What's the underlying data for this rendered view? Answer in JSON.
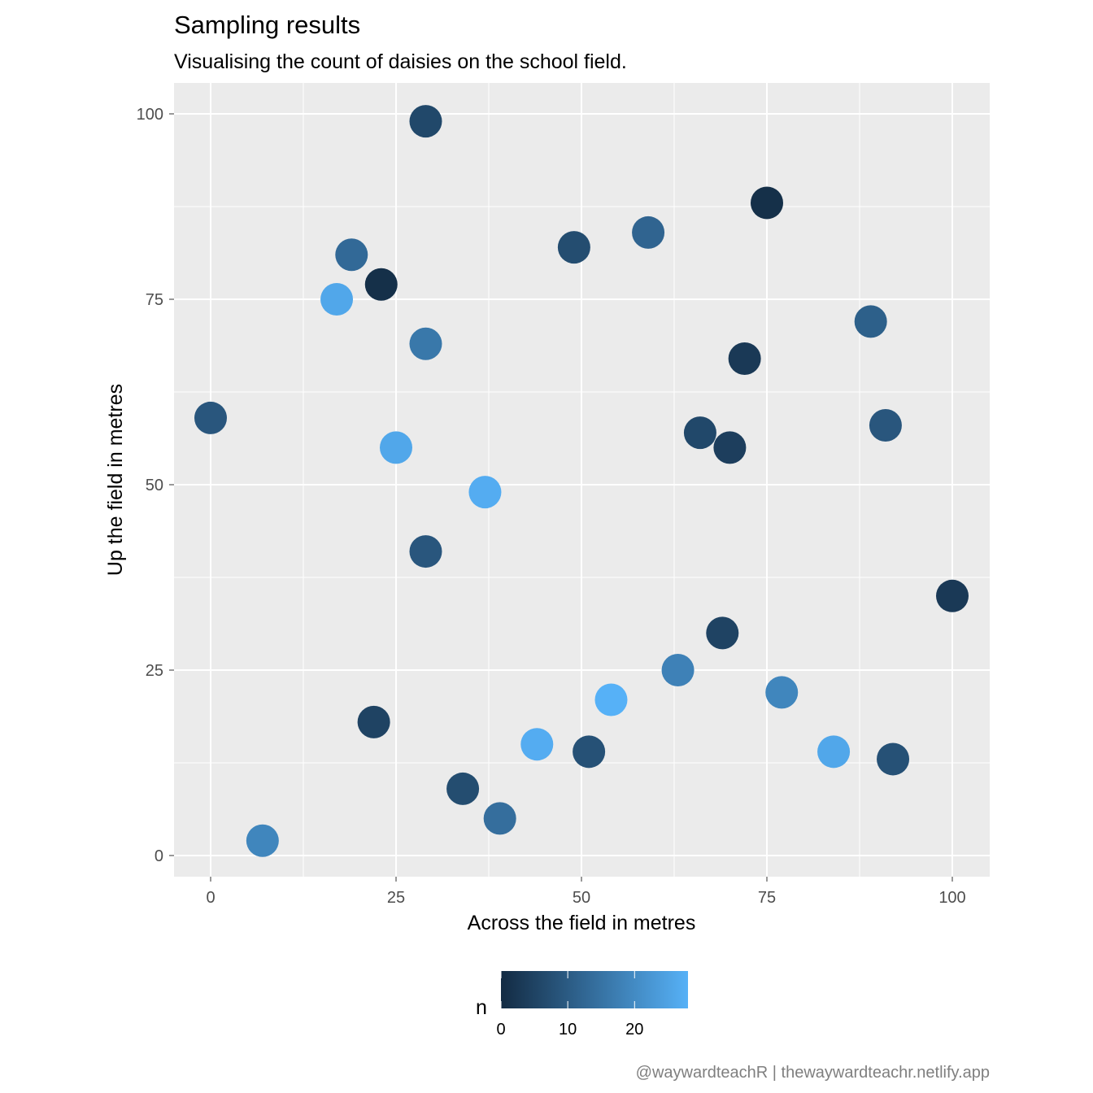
{
  "chart_data": {
    "type": "scatter",
    "title": "Sampling results",
    "subtitle": "Visualising the count of daisies on the school field.",
    "xlabel": "Across the field in metres",
    "ylabel": "Up the field in metres",
    "xlim": [
      -5,
      105
    ],
    "ylim": [
      -2.5,
      104
    ],
    "x_ticks": [
      0,
      25,
      50,
      75,
      100
    ],
    "y_ticks": [
      0,
      25,
      50,
      75,
      100
    ],
    "grid": true,
    "legend": {
      "title": "n",
      "position": "bottom",
      "ticks": [
        0,
        10,
        20
      ],
      "range": [
        0,
        28
      ],
      "low_color": "#132B43",
      "high_color": "#56B1F7"
    },
    "caption": "@waywardteachR | thewaywardteachr.netlify.app",
    "points": [
      {
        "x": 29,
        "y": 99,
        "n": 6
      },
      {
        "x": 75,
        "y": 88,
        "n": 1
      },
      {
        "x": 19,
        "y": 81,
        "n": 13
      },
      {
        "x": 49,
        "y": 82,
        "n": 7
      },
      {
        "x": 59,
        "y": 84,
        "n": 12
      },
      {
        "x": 23,
        "y": 77,
        "n": 1
      },
      {
        "x": 17,
        "y": 75,
        "n": 26
      },
      {
        "x": 29,
        "y": 69,
        "n": 16
      },
      {
        "x": 89,
        "y": 72,
        "n": 11
      },
      {
        "x": 72,
        "y": 67,
        "n": 3
      },
      {
        "x": 0,
        "y": 59,
        "n": 9
      },
      {
        "x": 91,
        "y": 58,
        "n": 9
      },
      {
        "x": 66,
        "y": 57,
        "n": 6
      },
      {
        "x": 70,
        "y": 55,
        "n": 4
      },
      {
        "x": 25,
        "y": 55,
        "n": 26
      },
      {
        "x": 37,
        "y": 49,
        "n": 27
      },
      {
        "x": 29,
        "y": 41,
        "n": 9
      },
      {
        "x": 100,
        "y": 35,
        "n": 3
      },
      {
        "x": 69,
        "y": 30,
        "n": 5
      },
      {
        "x": 63,
        "y": 25,
        "n": 18
      },
      {
        "x": 77,
        "y": 22,
        "n": 19
      },
      {
        "x": 54,
        "y": 21,
        "n": 28
      },
      {
        "x": 22,
        "y": 18,
        "n": 5
      },
      {
        "x": 44,
        "y": 15,
        "n": 27
      },
      {
        "x": 51,
        "y": 14,
        "n": 8
      },
      {
        "x": 84,
        "y": 14,
        "n": 26
      },
      {
        "x": 92,
        "y": 13,
        "n": 8
      },
      {
        "x": 34,
        "y": 9,
        "n": 7
      },
      {
        "x": 39,
        "y": 5,
        "n": 14
      },
      {
        "x": 7,
        "y": 2,
        "n": 19
      }
    ]
  }
}
